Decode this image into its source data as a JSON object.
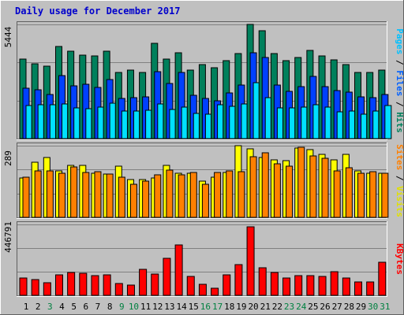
{
  "title": "Daily usage for December 2017",
  "colors": {
    "background": "#c0c0c0",
    "title": "#0000cc",
    "hits": "#00805c",
    "files": "#0040ff",
    "pages": "#00e0ff",
    "visits": "#ffff00",
    "sites": "#ff8000",
    "kbytes": "#ff0000",
    "weekday_label": "#000000",
    "weekend_label": "#008040"
  },
  "chart_data": [
    {
      "type": "bar",
      "name": "hits-files-pages",
      "ymax_label": "5444",
      "ylim": [
        0,
        5444
      ],
      "legend_parts": [
        {
          "text": "Pages",
          "color": "#00c0ff"
        },
        {
          "text": " / ",
          "color": "#000000"
        },
        {
          "text": "Files",
          "color": "#0060ff"
        },
        {
          "text": " / ",
          "color": "#000000"
        },
        {
          "text": "Hits",
          "color": "#00805c"
        }
      ],
      "categories": [
        "1",
        "2",
        "3",
        "4",
        "5",
        "6",
        "7",
        "8",
        "9",
        "10",
        "11",
        "12",
        "13",
        "14",
        "15",
        "16",
        "17",
        "18",
        "19",
        "20",
        "21",
        "22",
        "23",
        "24",
        "25",
        "26",
        "27",
        "28",
        "29",
        "30",
        "31"
      ],
      "series": [
        {
          "name": "Hits",
          "color": "#00805c",
          "values": [
            3800,
            3550,
            3450,
            4400,
            4150,
            3980,
            3950,
            4150,
            3150,
            3250,
            3150,
            4550,
            3800,
            4100,
            3250,
            3520,
            3380,
            3720,
            4050,
            5480,
            5150,
            4050,
            3720,
            3850,
            4200,
            3950,
            3750,
            3520,
            3150,
            3150,
            3250
          ]
        },
        {
          "name": "Files",
          "color": "#0040ff",
          "values": [
            2400,
            2320,
            2120,
            3000,
            2520,
            2600,
            2450,
            2800,
            1900,
            1950,
            2000,
            3200,
            2620,
            3150,
            2050,
            1900,
            1800,
            2180,
            2550,
            4100,
            3850,
            2550,
            2250,
            2470,
            2950,
            2480,
            2280,
            2220,
            2000,
            1950,
            2100
          ]
        },
        {
          "name": "Pages",
          "color": "#00e0ff",
          "values": [
            1580,
            1600,
            1600,
            1650,
            1450,
            1420,
            1500,
            1700,
            1300,
            1300,
            1350,
            1650,
            1400,
            1500,
            1200,
            1180,
            1600,
            1550,
            1650,
            2650,
            1950,
            1480,
            1450,
            1500,
            1620,
            1500,
            1280,
            1300,
            1160,
            1320,
            1580
          ]
        }
      ]
    },
    {
      "type": "bar",
      "name": "visits-sites",
      "ymax_label": "289",
      "ylim": [
        0,
        289
      ],
      "legend_parts": [
        {
          "text": "Sites",
          "color": "#ff8000"
        },
        {
          "text": " / ",
          "color": "#000000"
        },
        {
          "text": "Visits",
          "color": "#e0e000"
        }
      ],
      "categories": [
        "1",
        "2",
        "3",
        "4",
        "5",
        "6",
        "7",
        "8",
        "9",
        "10",
        "11",
        "12",
        "13",
        "14",
        "15",
        "16",
        "17",
        "18",
        "19",
        "20",
        "21",
        "22",
        "23",
        "24",
        "25",
        "26",
        "27",
        "28",
        "29",
        "30",
        "31"
      ],
      "series": [
        {
          "name": "Visits",
          "color": "#ffff00",
          "values": [
            158,
            222,
            240,
            188,
            211,
            209,
            178,
            176,
            207,
            153,
            152,
            160,
            211,
            177,
            178,
            145,
            162,
            182,
            299,
            276,
            240,
            233,
            230,
            280,
            272,
            255,
            231,
            255,
            186,
            178,
            179
          ]
        },
        {
          "name": "Sites",
          "color": "#ff8000",
          "values": [
            163,
            188,
            188,
            179,
            203,
            181,
            184,
            176,
            163,
            132,
            147,
            171,
            191,
            173,
            181,
            132,
            180,
            188,
            184,
            245,
            260,
            217,
            206,
            284,
            247,
            237,
            188,
            200,
            178,
            183,
            179
          ]
        }
      ]
    },
    {
      "type": "bar",
      "name": "kbytes",
      "ymax_label": "446791",
      "ylim": [
        0,
        446791
      ],
      "legend_parts": [
        {
          "text": "KBytes",
          "color": "#ff0000"
        }
      ],
      "categories": [
        "1",
        "2",
        "3",
        "4",
        "5",
        "6",
        "7",
        "8",
        "9",
        "10",
        "11",
        "12",
        "13",
        "14",
        "15",
        "16",
        "17",
        "18",
        "19",
        "20",
        "21",
        "22",
        "23",
        "24",
        "25",
        "26",
        "27",
        "28",
        "29",
        "30",
        "31"
      ],
      "series": [
        {
          "name": "KBytes",
          "color": "#ff0000",
          "values": [
            107000,
            97000,
            80000,
            128000,
            145000,
            140000,
            126000,
            130000,
            75000,
            64000,
            163000,
            135000,
            234000,
            317000,
            117000,
            71000,
            47000,
            128000,
            193000,
            430000,
            172000,
            145000,
            111000,
            123000,
            123000,
            118000,
            149000,
            110000,
            85000,
            84000,
            208000
          ]
        }
      ]
    }
  ],
  "x_axis": {
    "labels": [
      "1",
      "2",
      "3",
      "4",
      "5",
      "6",
      "7",
      "8",
      "9",
      "10",
      "11",
      "12",
      "13",
      "14",
      "15",
      "16",
      "17",
      "18",
      "19",
      "20",
      "21",
      "22",
      "23",
      "24",
      "25",
      "26",
      "27",
      "28",
      "29",
      "30",
      "31"
    ],
    "weekend": [
      false,
      false,
      true,
      false,
      false,
      false,
      false,
      false,
      true,
      true,
      false,
      false,
      false,
      false,
      false,
      true,
      true,
      false,
      false,
      false,
      false,
      false,
      true,
      true,
      false,
      false,
      false,
      false,
      false,
      true,
      true
    ]
  }
}
